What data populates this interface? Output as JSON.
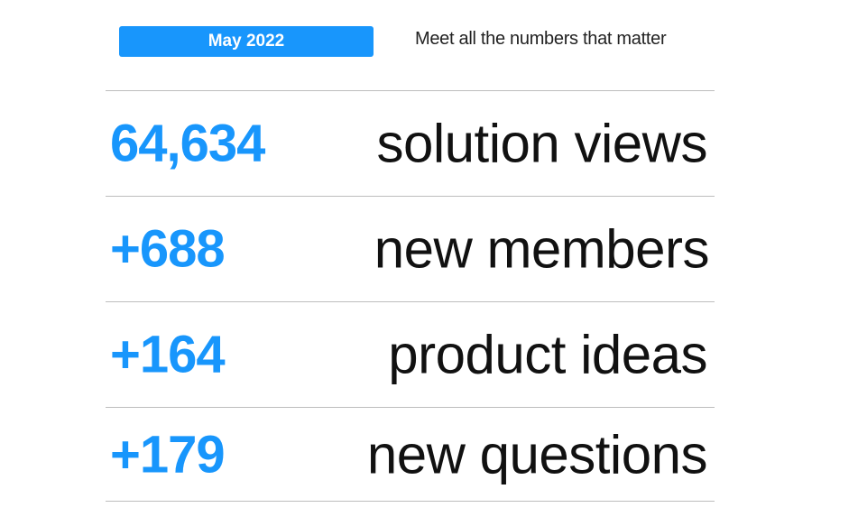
{
  "header": {
    "period": "May 2022",
    "tagline": "Meet all the numbers that matter",
    "accent_color": "#1896fc"
  },
  "stats": [
    {
      "value": "64,634",
      "label": "solution views"
    },
    {
      "value": "+688",
      "label": "new members"
    },
    {
      "value": "+164",
      "label": "product ideas"
    },
    {
      "value": "+179",
      "label": "new questions"
    }
  ]
}
